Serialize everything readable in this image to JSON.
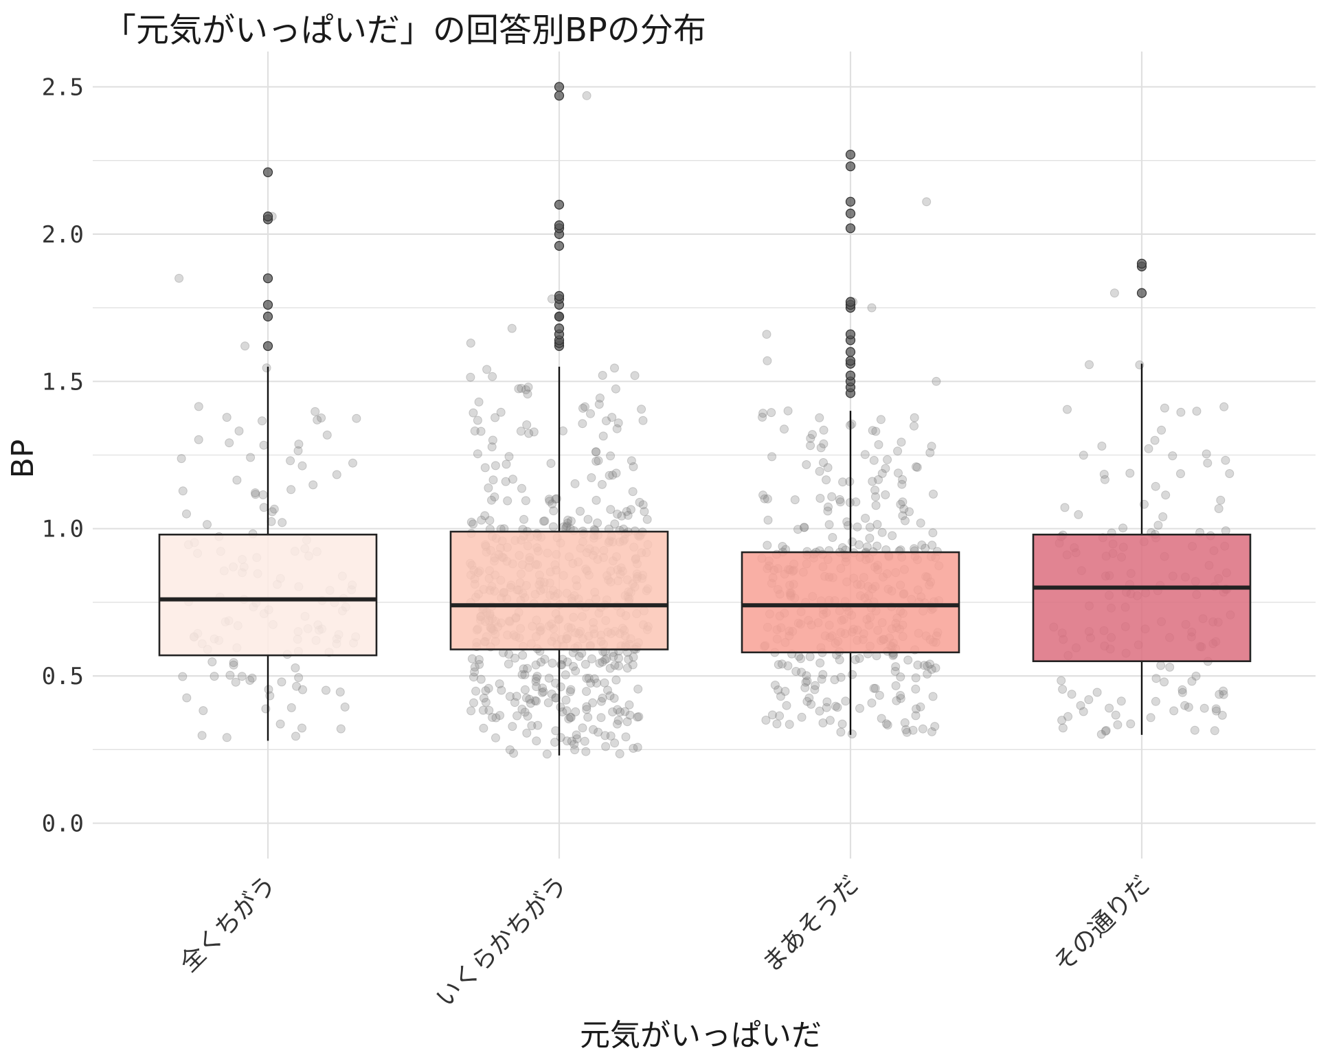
{
  "chart_data": {
    "type": "box",
    "title": "「元気がいっぱいだ」の回答別BPの分布",
    "xlabel": "元気がいっぱいだ",
    "ylabel": "BP",
    "ylim": [
      -0.12,
      2.62
    ],
    "yticks": [
      0.0,
      0.5,
      1.0,
      1.5,
      2.0,
      2.5
    ],
    "ytick_labels": [
      "0.0",
      "0.5",
      "1.0",
      "1.5",
      "2.0",
      "2.5"
    ],
    "grid": true,
    "categories": [
      "全くちがう",
      "いくらかちがう",
      "まあそうだ",
      "その通りだ"
    ],
    "boxes": [
      {
        "category": "全くちがう",
        "q1": 0.57,
        "median": 0.76,
        "q3": 0.98,
        "whisker_low": 0.28,
        "whisker_high": 1.55,
        "n_points": 130,
        "outliers": [
          1.62,
          1.72,
          1.76,
          1.85,
          2.05,
          2.06,
          2.21
        ]
      },
      {
        "category": "いくらかちがう",
        "q1": 0.59,
        "median": 0.74,
        "q3": 0.99,
        "whisker_low": 0.23,
        "whisker_high": 1.55,
        "n_points": 560,
        "outliers": [
          1.62,
          1.63,
          1.64,
          1.66,
          1.68,
          1.72,
          1.72,
          1.76,
          1.78,
          1.79,
          1.96,
          2.0,
          2.02,
          2.03,
          2.1,
          2.47,
          2.5
        ]
      },
      {
        "category": "まあそうだ",
        "q1": 0.58,
        "median": 0.74,
        "q3": 0.92,
        "whisker_low": 0.3,
        "whisker_high": 1.4,
        "n_points": 380,
        "outliers": [
          1.46,
          1.48,
          1.5,
          1.52,
          1.56,
          1.57,
          1.6,
          1.64,
          1.66,
          1.75,
          1.76,
          1.77,
          2.02,
          2.07,
          2.11,
          2.23,
          2.27
        ]
      },
      {
        "category": "その通りだ",
        "q1": 0.55,
        "median": 0.8,
        "q3": 0.98,
        "whisker_low": 0.3,
        "whisker_high": 1.56,
        "n_points": 150,
        "outliers": [
          1.8,
          1.89,
          1.9
        ]
      }
    ],
    "colors": {
      "box_fills": [
        "#fdebe4",
        "#fbc5b5",
        "#f8a195",
        "#dc6f7f"
      ],
      "box_stroke": "#222222",
      "median": "#222222",
      "whisker": "#111111",
      "points": "#777777",
      "grid": "#e0e0e0"
    }
  }
}
